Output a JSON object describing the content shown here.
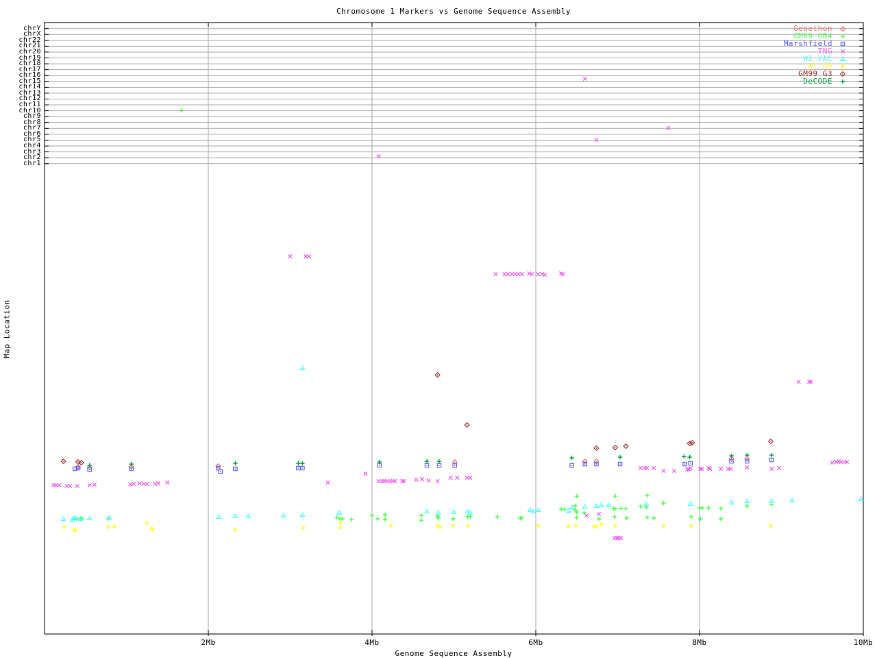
{
  "title": "Chromosome 1 Markers vs Genome Sequence Assembly",
  "x_axis": {
    "label": "Genome Sequence Assembly",
    "units": "Mb",
    "range": [
      0,
      10
    ],
    "ticks": [
      {
        "mb": 2,
        "label": "2Mb"
      },
      {
        "mb": 4,
        "label": "4Mb"
      },
      {
        "mb": 6,
        "label": "6Mb"
      },
      {
        "mb": 8,
        "label": "8Mb"
      },
      {
        "mb": 10,
        "label": "10Mb"
      }
    ]
  },
  "y_axis": {
    "label": "Map Location",
    "note": "no numeric scale; chromosome band ticks listed top to bottom",
    "chromosomes": [
      "chrY",
      "chrX",
      "chr22",
      "chr21",
      "chr20",
      "chr19",
      "chr18",
      "chr17",
      "chr16",
      "chr15",
      "chr14",
      "chr13",
      "chr12",
      "chr11",
      "chr10",
      "chr9",
      "chr8",
      "chr7",
      "chr6",
      "chr5",
      "chr4",
      "chr3",
      "chr2",
      "chr1"
    ]
  },
  "legend": [
    {
      "name": "Genethon",
      "marker": "diamond-dot",
      "color": "#f26b6b"
    },
    {
      "name": "GM99 GB4",
      "marker": "plus",
      "color": "#4dff4d"
    },
    {
      "name": "Marshfield",
      "marker": "square-dot",
      "color": "#5a5af5"
    },
    {
      "name": "TNG",
      "marker": "x",
      "color": "#f160f1"
    },
    {
      "name": "WI YAC",
      "marker": "triangle-dot",
      "color": "#4dffff"
    },
    {
      "name": "WI RH",
      "marker": "star",
      "color": "#ffff4d"
    },
    {
      "name": "GM99 G3",
      "marker": "diamond-dot",
      "color": "#a32828"
    },
    {
      "name": "DeCODE",
      "marker": "plus",
      "color": "#00a23c"
    }
  ],
  "chart_data": {
    "type": "scatter",
    "title": "Chromosome 1 Markers vs Genome Sequence Assembly",
    "xlabel": "Genome Sequence Assembly",
    "ylabel": "Map Location",
    "x_units": "Mb",
    "xlim": [
      0,
      10
    ],
    "y_units": "screen pixel (y axis has chromosome bands only, no numeric labels; smaller y = higher chromosome band)",
    "grid": true,
    "legend_position": "top-right",
    "series": [
      {
        "name": "Genethon",
        "marker": "diamond-dot",
        "color": "#f26b6b",
        "points": [
          [
            0.41,
            681
          ],
          [
            0.55,
            682
          ],
          [
            1.06,
            681
          ],
          [
            2.12,
            680
          ],
          [
            5.01,
            674
          ],
          [
            6.6,
            673
          ],
          [
            6.74,
            673
          ],
          [
            8.39,
            669
          ],
          [
            8.58,
            669
          ]
        ]
      },
      {
        "name": "GM99 GB4",
        "marker": "plus",
        "color": "#4dff4d",
        "points": [
          [
            1.67,
            161
          ],
          [
            0.39,
            757
          ],
          [
            0.44,
            756
          ],
          [
            0.46,
            757
          ],
          [
            0.78,
            757
          ],
          [
            3.57,
            755
          ],
          [
            3.61,
            757
          ],
          [
            3.64,
            757
          ],
          [
            3.75,
            758
          ],
          [
            4.0,
            752
          ],
          [
            4.07,
            757
          ],
          [
            4.16,
            751
          ],
          [
            4.16,
            758
          ],
          [
            4.6,
            752
          ],
          [
            4.6,
            759
          ],
          [
            4.8,
            753
          ],
          [
            4.81,
            756
          ],
          [
            4.99,
            757
          ],
          [
            5.17,
            754
          ],
          [
            5.2,
            754
          ],
          [
            5.53,
            754
          ],
          [
            5.81,
            756
          ],
          [
            5.83,
            756
          ],
          [
            6.31,
            743
          ],
          [
            6.35,
            743
          ],
          [
            6.48,
            738
          ],
          [
            6.48,
            744
          ],
          [
            6.5,
            747
          ],
          [
            6.5,
            755
          ],
          [
            6.59,
            748
          ],
          [
            6.77,
            757
          ],
          [
            6.95,
            742
          ],
          [
            6.96,
            754
          ],
          [
            6.97,
            742
          ],
          [
            7.04,
            742
          ],
          [
            7.1,
            742
          ],
          [
            7.11,
            756
          ],
          [
            7.28,
            739
          ],
          [
            7.35,
            740
          ],
          [
            7.36,
            755
          ],
          [
            7.44,
            756
          ],
          [
            7.56,
            734
          ],
          [
            7.9,
            754
          ],
          [
            8.0,
            741
          ],
          [
            8.03,
            741
          ],
          [
            8.11,
            741
          ],
          [
            8.26,
            742
          ],
          [
            8.58,
            738
          ],
          [
            8.88,
            736
          ],
          [
            8.01,
            757
          ],
          [
            8.26,
            757
          ],
          [
            6.5,
            724
          ],
          [
            6.97,
            724
          ],
          [
            7.36,
            723
          ]
        ]
      },
      {
        "name": "Marshfield",
        "marker": "square-dot",
        "color": "#5a5af5",
        "points": [
          [
            0.37,
            684
          ],
          [
            0.41,
            683
          ],
          [
            0.55,
            685
          ],
          [
            1.06,
            684
          ],
          [
            2.12,
            683
          ],
          [
            2.15,
            688
          ],
          [
            2.33,
            684
          ],
          [
            3.1,
            683
          ],
          [
            3.15,
            683
          ],
          [
            4.09,
            679
          ],
          [
            4.67,
            679
          ],
          [
            4.82,
            679
          ],
          [
            5.01,
            679
          ],
          [
            6.44,
            679
          ],
          [
            6.6,
            677
          ],
          [
            6.74,
            677
          ],
          [
            7.03,
            677
          ],
          [
            7.82,
            677
          ],
          [
            7.89,
            676
          ],
          [
            8.39,
            673
          ],
          [
            8.58,
            673
          ],
          [
            8.88,
            671
          ]
        ]
      },
      {
        "name": "TNG",
        "marker": "x",
        "color": "#f160f1",
        "points": [
          [
            6.6,
            115
          ],
          [
            7.62,
            187
          ],
          [
            6.74,
            204
          ],
          [
            4.08,
            228
          ],
          [
            3.0,
            374
          ],
          [
            3.19,
            374
          ],
          [
            3.23,
            374
          ],
          [
            5.51,
            400
          ],
          [
            5.62,
            400
          ],
          [
            5.66,
            400
          ],
          [
            5.71,
            400
          ],
          [
            5.75,
            400
          ],
          [
            5.79,
            400
          ],
          [
            5.83,
            400
          ],
          [
            5.92,
            399
          ],
          [
            5.95,
            400
          ],
          [
            6.03,
            400
          ],
          [
            6.08,
            400
          ],
          [
            6.11,
            401
          ],
          [
            6.31,
            399
          ],
          [
            6.33,
            400
          ],
          [
            9.21,
            557
          ],
          [
            9.34,
            557
          ],
          [
            9.36,
            557
          ],
          [
            3.92,
            691
          ],
          [
            3.46,
            704
          ],
          [
            0.11,
            708
          ],
          [
            0.14,
            708
          ],
          [
            0.18,
            708
          ],
          [
            0.27,
            709
          ],
          [
            0.31,
            709
          ],
          [
            0.4,
            709
          ],
          [
            0.55,
            708
          ],
          [
            0.61,
            707
          ],
          [
            1.05,
            707
          ],
          [
            1.09,
            706
          ],
          [
            1.16,
            705
          ],
          [
            1.21,
            706
          ],
          [
            1.25,
            706
          ],
          [
            1.35,
            706
          ],
          [
            1.39,
            705
          ],
          [
            1.5,
            704
          ],
          [
            4.08,
            702
          ],
          [
            4.12,
            702
          ],
          [
            4.15,
            702
          ],
          [
            4.18,
            702
          ],
          [
            4.22,
            702
          ],
          [
            4.25,
            702
          ],
          [
            4.28,
            702
          ],
          [
            4.37,
            702
          ],
          [
            4.39,
            702
          ],
          [
            4.54,
            700
          ],
          [
            4.61,
            699
          ],
          [
            4.69,
            701
          ],
          [
            4.8,
            702
          ],
          [
            4.96,
            697
          ],
          [
            5.04,
            697
          ],
          [
            5.16,
            697
          ],
          [
            5.2,
            697
          ],
          [
            7.28,
            683
          ],
          [
            7.33,
            683
          ],
          [
            7.36,
            683
          ],
          [
            7.44,
            683
          ],
          [
            7.56,
            687
          ],
          [
            7.69,
            687
          ],
          [
            7.85,
            685
          ],
          [
            7.87,
            685
          ],
          [
            7.89,
            683
          ],
          [
            8.01,
            684
          ],
          [
            8.03,
            684
          ],
          [
            8.11,
            683
          ],
          [
            8.13,
            684
          ],
          [
            8.26,
            684
          ],
          [
            8.35,
            684
          ],
          [
            8.38,
            684
          ],
          [
            8.58,
            682
          ],
          [
            8.88,
            684
          ],
          [
            8.97,
            683
          ],
          [
            9.62,
            675
          ],
          [
            9.67,
            674
          ],
          [
            9.7,
            673
          ],
          [
            9.73,
            674
          ],
          [
            9.77,
            674
          ],
          [
            9.8,
            674
          ],
          [
            6.62,
            752
          ],
          [
            6.77,
            750
          ],
          [
            6.96,
            785
          ],
          [
            6.99,
            785
          ],
          [
            7.01,
            785
          ],
          [
            7.04,
            785
          ]
        ]
      },
      {
        "name": "WI YAC",
        "marker": "triangle-dot",
        "color": "#4dffff",
        "points": [
          [
            3.15,
            537
          ],
          [
            0.23,
            757
          ],
          [
            0.34,
            758
          ],
          [
            0.36,
            756
          ],
          [
            0.38,
            756
          ],
          [
            0.44,
            757
          ],
          [
            0.55,
            756
          ],
          [
            0.79,
            755
          ],
          [
            2.13,
            754
          ],
          [
            2.33,
            753
          ],
          [
            2.49,
            753
          ],
          [
            2.92,
            752
          ],
          [
            3.15,
            751
          ],
          [
            3.6,
            748
          ],
          [
            4.67,
            746
          ],
          [
            4.81,
            748
          ],
          [
            5.0,
            747
          ],
          [
            5.17,
            746
          ],
          [
            5.2,
            748
          ],
          [
            5.93,
            744
          ],
          [
            5.97,
            746
          ],
          [
            6.03,
            744
          ],
          [
            6.4,
            745
          ],
          [
            6.44,
            740
          ],
          [
            6.6,
            739
          ],
          [
            6.74,
            738
          ],
          [
            6.8,
            737
          ],
          [
            6.89,
            737
          ],
          [
            7.35,
            735
          ],
          [
            7.89,
            735
          ],
          [
            8.39,
            733
          ],
          [
            8.58,
            731
          ],
          [
            8.88,
            731
          ],
          [
            9.13,
            730
          ],
          [
            9.97,
            728
          ]
        ]
      },
      {
        "name": "WI RH",
        "marker": "star",
        "color": "#ffff4d",
        "points": [
          [
            0.24,
            769
          ],
          [
            0.36,
            773
          ],
          [
            0.38,
            774
          ],
          [
            0.78,
            769
          ],
          [
            0.85,
            768
          ],
          [
            1.25,
            763
          ],
          [
            1.31,
            771
          ],
          [
            1.32,
            773
          ],
          [
            2.33,
            773
          ],
          [
            3.16,
            770
          ],
          [
            3.61,
            763
          ],
          [
            3.61,
            770
          ],
          [
            4.23,
            767
          ],
          [
            4.8,
            767
          ],
          [
            4.83,
            769
          ],
          [
            4.99,
            767
          ],
          [
            5.17,
            767
          ],
          [
            6.03,
            767
          ],
          [
            6.4,
            768
          ],
          [
            6.49,
            767
          ],
          [
            6.71,
            768
          ],
          [
            6.74,
            768
          ],
          [
            6.8,
            765
          ],
          [
            6.97,
            767
          ],
          [
            7.56,
            767
          ],
          [
            7.9,
            767
          ],
          [
            8.87,
            767
          ]
        ]
      },
      {
        "name": "GM99 G3",
        "marker": "diamond-dot",
        "color": "#a32828",
        "points": [
          [
            0.23,
            673
          ],
          [
            0.41,
            674
          ],
          [
            0.45,
            675
          ],
          [
            4.8,
            547
          ],
          [
            5.16,
            620
          ],
          [
            6.74,
            654
          ],
          [
            6.97,
            653
          ],
          [
            7.1,
            651
          ],
          [
            7.88,
            647
          ],
          [
            7.91,
            646
          ],
          [
            8.87,
            644
          ]
        ]
      },
      {
        "name": "DeCODE",
        "marker": "plus",
        "color": "#00a23c",
        "points": [
          [
            0.55,
            679
          ],
          [
            1.06,
            677
          ],
          [
            2.33,
            676
          ],
          [
            3.1,
            676
          ],
          [
            3.15,
            676
          ],
          [
            4.09,
            674
          ],
          [
            4.67,
            673
          ],
          [
            4.82,
            673
          ],
          [
            6.44,
            668
          ],
          [
            7.03,
            667
          ],
          [
            7.81,
            666
          ],
          [
            7.88,
            667
          ],
          [
            8.39,
            665
          ],
          [
            8.58,
            664
          ],
          [
            8.88,
            664
          ]
        ]
      }
    ]
  }
}
